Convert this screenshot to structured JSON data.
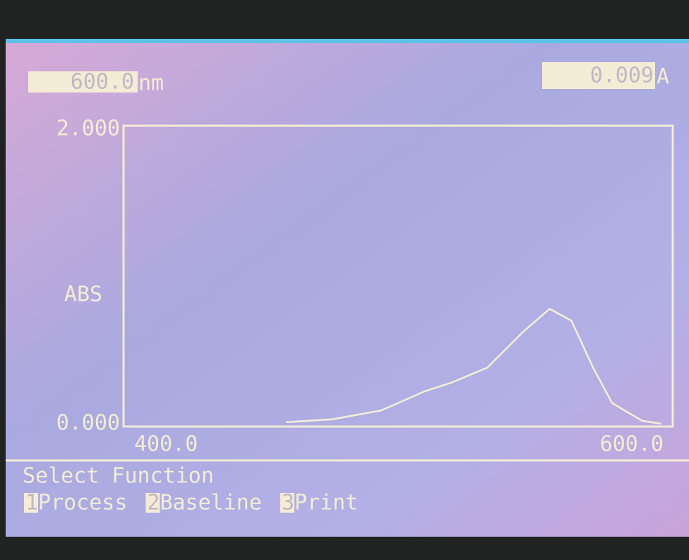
{
  "chart_data": {
    "type": "line",
    "ylabel": "ABS",
    "x": [
      459,
      476,
      494,
      510,
      520,
      533,
      546,
      556,
      564,
      572,
      579,
      590,
      597
    ],
    "series": [
      {
        "color": "#f6efd6",
        "values": [
          0.01,
          0.03,
          0.09,
          0.22,
          0.28,
          0.38,
          0.62,
          0.78,
          0.7,
          0.38,
          0.14,
          0.02,
          0.0
        ]
      }
    ],
    "xlim": [
      400,
      600
    ],
    "xticks": [
      {
        "value": 400,
        "label": "400.0"
      },
      {
        "value": 600,
        "label": "600.0"
      }
    ],
    "ylim": [
      0,
      2
    ],
    "yticks": [
      {
        "value": 0,
        "label": "0.000"
      },
      {
        "value": 2,
        "label": "2.000"
      }
    ]
  },
  "header": {
    "wavelength": "600.0",
    "wavelength_unit": "nm",
    "absorbance": "0.009",
    "absorbance_unit": "A"
  },
  "menu": {
    "title": "Select Function",
    "items": [
      {
        "key": "1",
        "label": "Process"
      },
      {
        "key": "2",
        "label": "Baseline"
      },
      {
        "key": "3",
        "label": "Print"
      }
    ]
  }
}
